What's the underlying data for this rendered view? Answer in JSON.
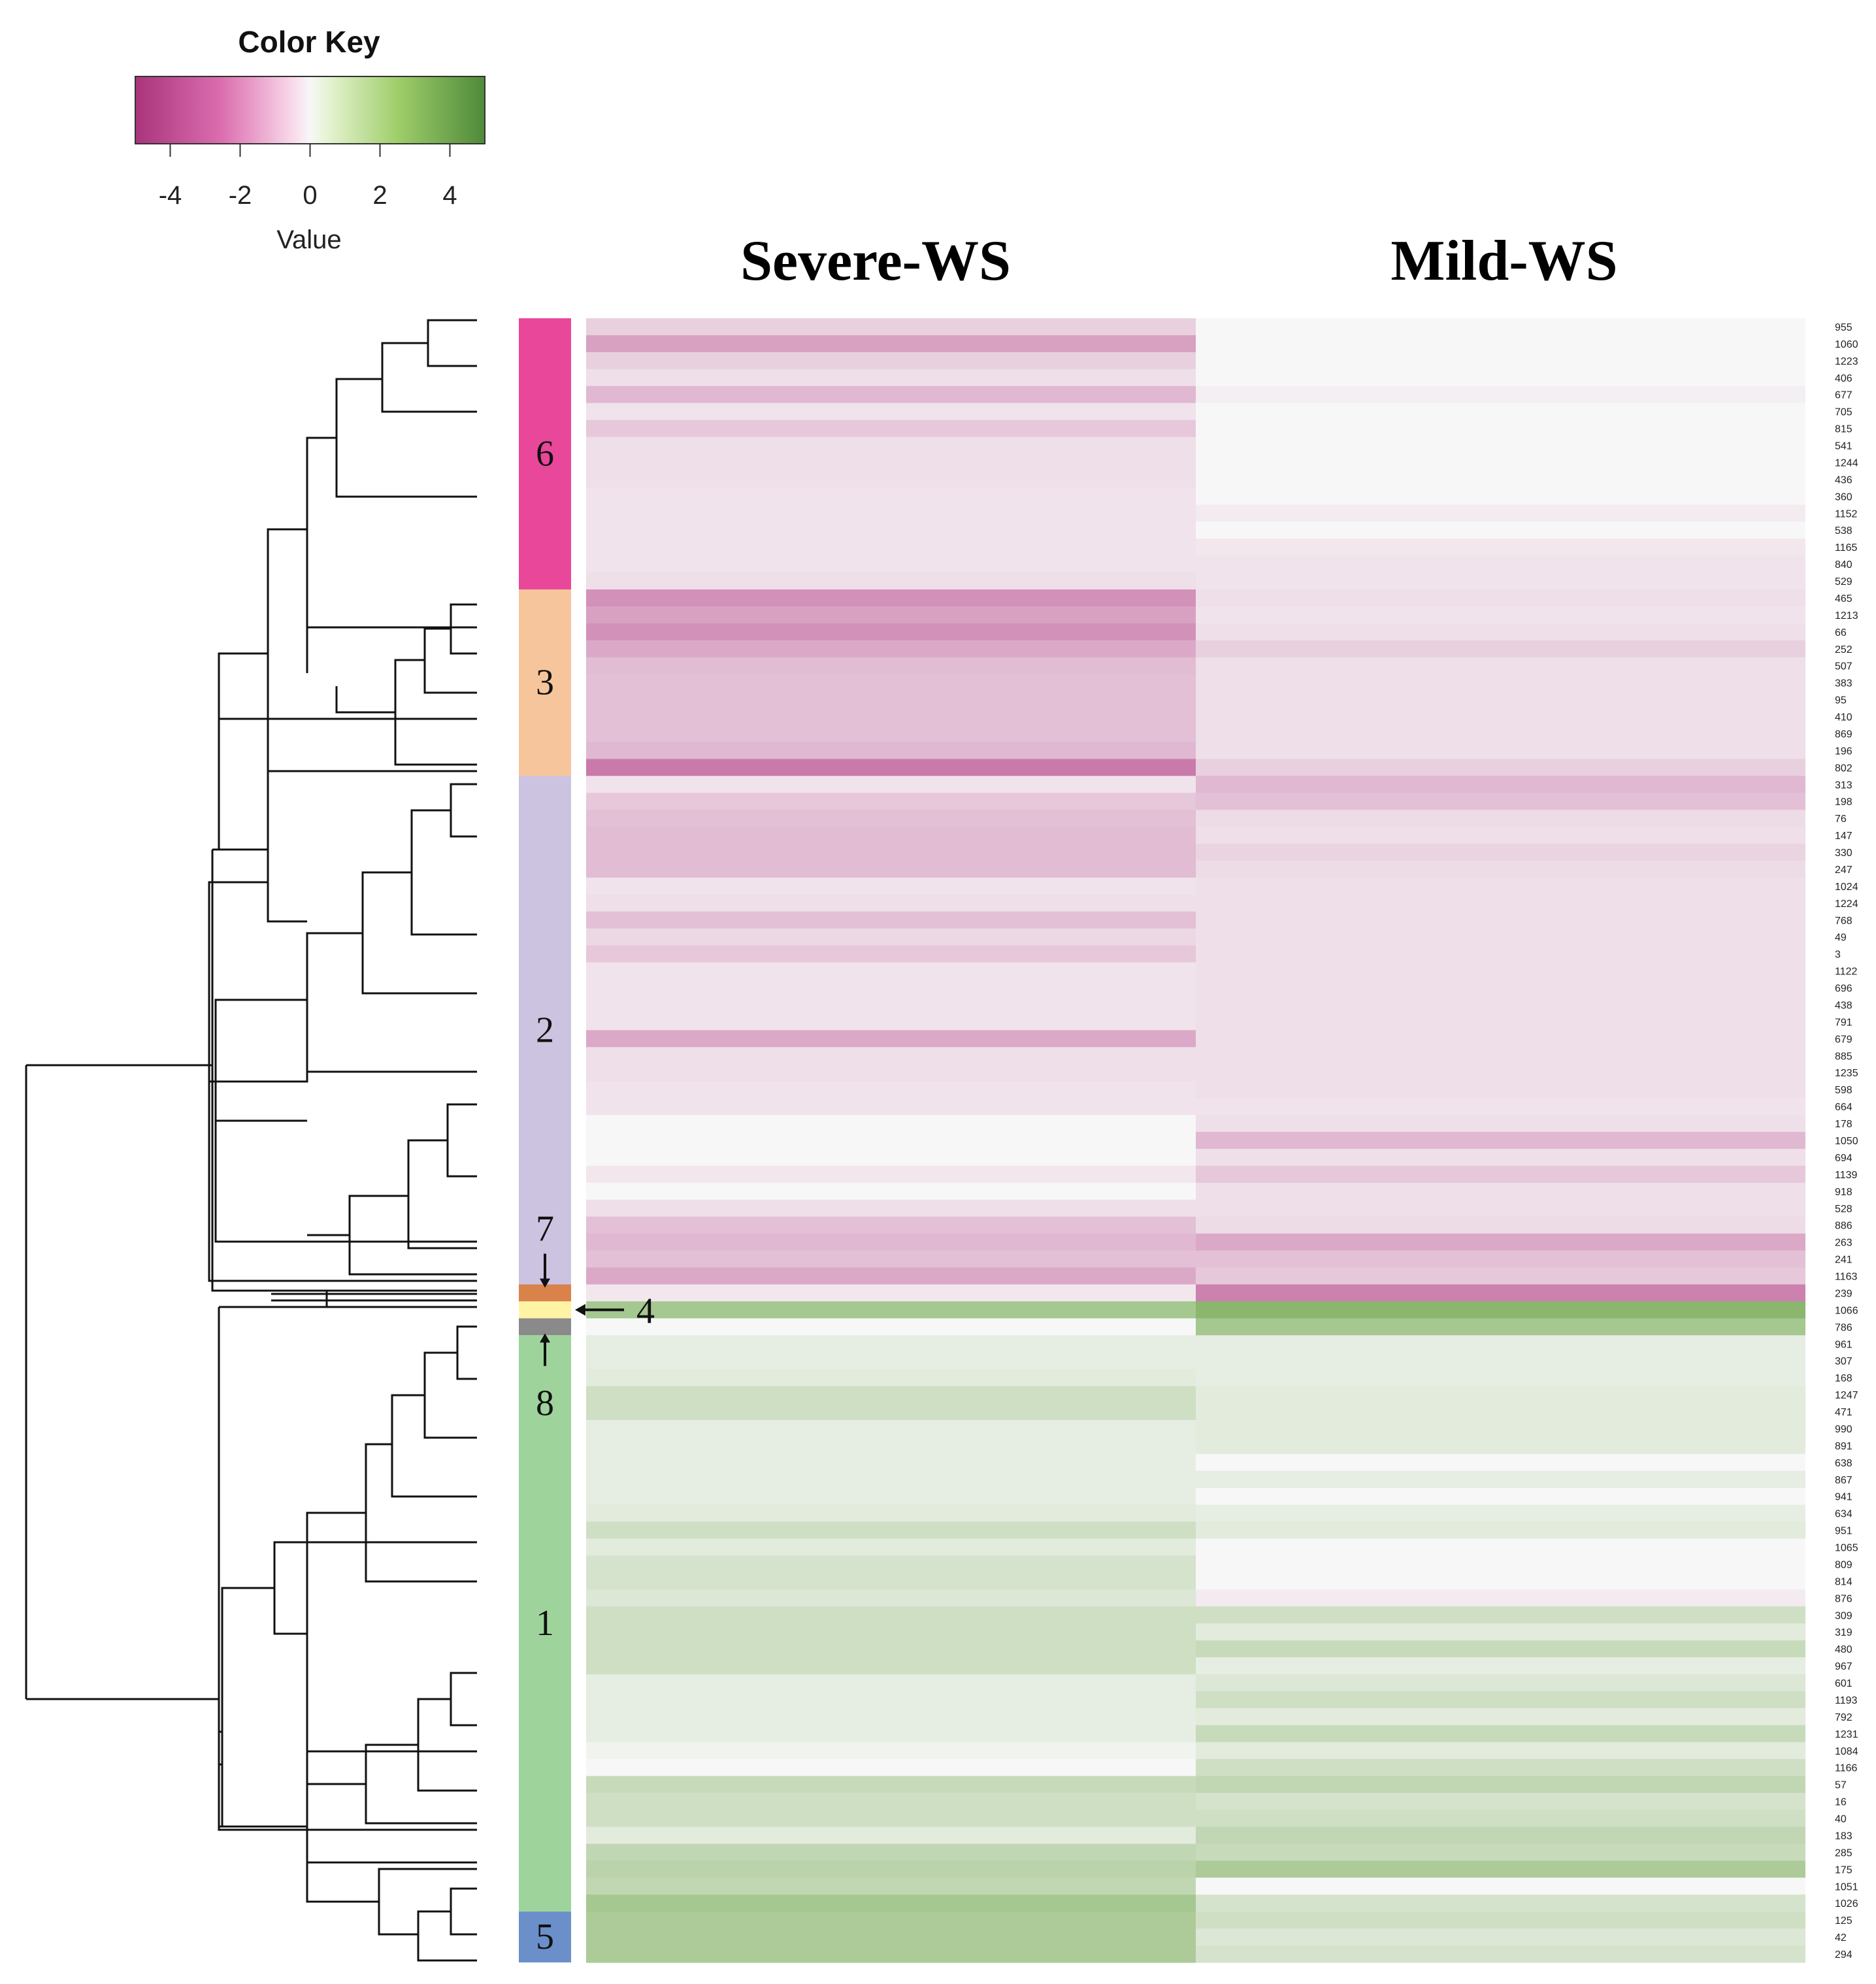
{
  "chart_data": {
    "type": "heatmap",
    "title": "",
    "color_key": {
      "title": "Color Key",
      "xlabel": "Value",
      "ticks": [
        "-4",
        "-2",
        "0",
        "2",
        "4"
      ],
      "range": [
        -5,
        5
      ],
      "colors": {
        "low": "#b0337f",
        "mid": "#f7f7f7",
        "high": "#4d9221"
      }
    },
    "columns": [
      "Severe-WS",
      "Mild-WS"
    ],
    "clusters": [
      {
        "name": "6",
        "color": "#e8479a",
        "start": 0,
        "end": 16
      },
      {
        "name": "3",
        "color": "#f7c59b",
        "start": 16,
        "end": 27
      },
      {
        "name": "2",
        "color": "#cbc3e0",
        "start": 27,
        "end": 57
      },
      {
        "name": "7",
        "color": "#d9824a",
        "start": 57,
        "end": 58
      },
      {
        "name": "4",
        "color": "#fff4a3",
        "start": 58,
        "end": 59
      },
      {
        "name": "8",
        "color": "#8a8a8a",
        "start": 59,
        "end": 60
      },
      {
        "name": "1",
        "color": "#9fd39c",
        "start": 60,
        "end": 94
      },
      {
        "name": "5",
        "color": "#6b8fc9",
        "start": 94,
        "end": 97
      }
    ],
    "annotations": [
      {
        "text": "7",
        "cluster": "7",
        "arrow": "down"
      },
      {
        "text": "4",
        "cluster": "4",
        "arrow": "left"
      },
      {
        "text": "8",
        "cluster": "8",
        "arrow": "up"
      }
    ],
    "row_labels": [
      "955",
      "1060",
      "1223",
      "406",
      "677",
      "705",
      "815",
      "541",
      "1244",
      "436",
      "360",
      "1152",
      "538",
      "1165",
      "840",
      "529",
      "465",
      "1213",
      "66",
      "252",
      "507",
      "383",
      "95",
      "410",
      "869",
      "196",
      "802",
      "313",
      "198",
      "76",
      "147",
      "330",
      "247",
      "1024",
      "1224",
      "768",
      "49",
      "3",
      "1122",
      "696",
      "438",
      "791",
      "679",
      "885",
      "1235",
      "598",
      "664",
      "178",
      "1050",
      "694",
      "1139",
      "918",
      "528",
      "886",
      "263",
      "241",
      "1163",
      "239",
      "1066",
      "786",
      "961",
      "307",
      "168",
      "1247",
      "471",
      "990",
      "891",
      "638",
      "867",
      "941",
      "634",
      "951",
      "1065",
      "809",
      "814",
      "876",
      "309",
      "319",
      "480",
      "967",
      "601",
      "1193",
      "792",
      "1231",
      "1084",
      "1166",
      "57",
      "16",
      "40",
      "183",
      "285",
      "175",
      "1051",
      "1026",
      "125",
      "42",
      "294"
    ],
    "values": [
      [
        -1.0,
        0.0
      ],
      [
        -2.2,
        0.0
      ],
      [
        -1.0,
        0.0
      ],
      [
        -0.6,
        0.0
      ],
      [
        -1.6,
        -0.2
      ],
      [
        -0.5,
        0.0
      ],
      [
        -1.2,
        0.0
      ],
      [
        -0.6,
        0.0
      ],
      [
        -0.6,
        0.0
      ],
      [
        -0.6,
        0.0
      ],
      [
        -0.5,
        0.0
      ],
      [
        -0.5,
        -0.3
      ],
      [
        -0.5,
        0.0
      ],
      [
        -0.5,
        -0.4
      ],
      [
        -0.5,
        -0.5
      ],
      [
        -0.6,
        -0.5
      ],
      [
        -2.6,
        -0.6
      ],
      [
        -2.2,
        -0.5
      ],
      [
        -2.6,
        -0.6
      ],
      [
        -2.0,
        -1.0
      ],
      [
        -1.5,
        -0.6
      ],
      [
        -1.4,
        -0.6
      ],
      [
        -1.4,
        -0.6
      ],
      [
        -1.4,
        -0.6
      ],
      [
        -1.4,
        -0.6
      ],
      [
        -1.6,
        -0.6
      ],
      [
        -3.2,
        -1.0
      ],
      [
        -0.5,
        -1.6
      ],
      [
        -1.2,
        -1.4
      ],
      [
        -1.4,
        -0.7
      ],
      [
        -1.5,
        -0.6
      ],
      [
        -1.5,
        -0.9
      ],
      [
        -1.5,
        -0.7
      ],
      [
        -0.5,
        -0.6
      ],
      [
        -0.6,
        -0.6
      ],
      [
        -1.4,
        -0.6
      ],
      [
        -0.8,
        -0.6
      ],
      [
        -1.2,
        -0.6
      ],
      [
        -0.5,
        -0.6
      ],
      [
        -0.5,
        -0.6
      ],
      [
        -0.5,
        -0.6
      ],
      [
        -0.5,
        -0.6
      ],
      [
        -2.0,
        -0.6
      ],
      [
        -0.6,
        -0.6
      ],
      [
        -0.6,
        -0.6
      ],
      [
        -0.5,
        -0.6
      ],
      [
        -0.5,
        -0.5
      ],
      [
        0.0,
        -0.6
      ],
      [
        0.0,
        -1.6
      ],
      [
        0.0,
        -0.6
      ],
      [
        -0.4,
        -1.2
      ],
      [
        0.0,
        -0.6
      ],
      [
        -0.6,
        -0.6
      ],
      [
        -1.4,
        -0.7
      ],
      [
        -1.6,
        -2.0
      ],
      [
        -1.4,
        -1.4
      ],
      [
        -2.0,
        -1.2
      ],
      [
        -0.4,
        -3.0
      ],
      [
        2.4,
        3.2
      ],
      [
        0.0,
        2.4
      ],
      [
        0.5,
        0.5
      ],
      [
        0.5,
        0.5
      ],
      [
        0.6,
        0.5
      ],
      [
        1.2,
        0.6
      ],
      [
        1.2,
        0.6
      ],
      [
        0.5,
        0.6
      ],
      [
        0.5,
        0.6
      ],
      [
        0.5,
        0.0
      ],
      [
        0.5,
        0.5
      ],
      [
        0.5,
        0.0
      ],
      [
        0.6,
        0.5
      ],
      [
        1.2,
        0.6
      ],
      [
        0.6,
        0.0
      ],
      [
        1.0,
        0.0
      ],
      [
        1.0,
        0.0
      ],
      [
        0.8,
        -0.3
      ],
      [
        1.2,
        1.2
      ],
      [
        1.2,
        0.6
      ],
      [
        1.2,
        1.4
      ],
      [
        1.2,
        0.5
      ],
      [
        0.5,
        0.8
      ],
      [
        0.5,
        1.2
      ],
      [
        0.5,
        0.6
      ],
      [
        0.5,
        1.4
      ],
      [
        0.2,
        0.6
      ],
      [
        0.0,
        1.2
      ],
      [
        1.4,
        1.6
      ],
      [
        1.2,
        1.0
      ],
      [
        1.2,
        1.2
      ],
      [
        0.6,
        1.6
      ],
      [
        1.6,
        1.4
      ],
      [
        1.8,
        2.2
      ],
      [
        1.6,
        0.0
      ],
      [
        2.4,
        1.0
      ],
      [
        2.2,
        1.2
      ],
      [
        2.2,
        0.8
      ],
      [
        2.2,
        1.0
      ]
    ]
  }
}
